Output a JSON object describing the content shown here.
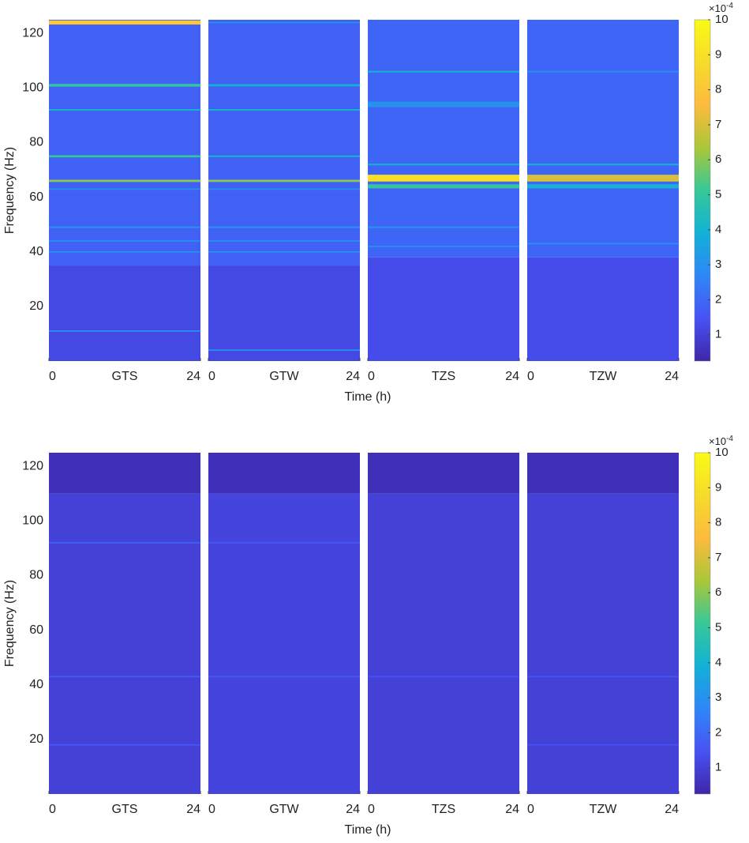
{
  "chart_data": [
    {
      "type": "heatmap",
      "ylabel": "Frequency (Hz)",
      "xlabel": "Time (h)",
      "ylim": [
        0,
        125
      ],
      "yticks": [
        20,
        40,
        60,
        80,
        100,
        120
      ],
      "xlim": [
        0,
        24
      ],
      "xticks": [
        0,
        24
      ],
      "clim": [
        0.25,
        10
      ],
      "cticks": [
        1,
        2,
        3,
        4,
        5,
        6,
        7,
        8,
        9,
        10
      ],
      "colorbar_scale": {
        "base": "×10",
        "exponent": "-4"
      },
      "colormap": "parula",
      "panels": [
        {
          "name": "GTS",
          "regions": [
            {
              "from": 0,
              "to": 35,
              "level": 1.2
            },
            {
              "from": 35,
              "to": 125,
              "level": 1.8
            }
          ],
          "bands": [
            {
              "freq": 124,
              "level": 8,
              "width": 1.5
            },
            {
              "freq": 101,
              "level": 5,
              "width": 1
            },
            {
              "freq": 92,
              "level": 4,
              "width": 0.6
            },
            {
              "freq": 75,
              "level": 5,
              "width": 0.8
            },
            {
              "freq": 66,
              "level": 6,
              "width": 0.8
            },
            {
              "freq": 63,
              "level": 3,
              "width": 0.5
            },
            {
              "freq": 49,
              "level": 3,
              "width": 0.6
            },
            {
              "freq": 44,
              "level": 3,
              "width": 0.5
            },
            {
              "freq": 40,
              "level": 3,
              "width": 0.5
            },
            {
              "freq": 11,
              "level": 3,
              "width": 0.5
            }
          ]
        },
        {
          "name": "GTW",
          "regions": [
            {
              "from": 0,
              "to": 35,
              "level": 1.2
            },
            {
              "from": 35,
              "to": 125,
              "level": 1.8
            }
          ],
          "bands": [
            {
              "freq": 124,
              "level": 3,
              "width": 0.5
            },
            {
              "freq": 101,
              "level": 4,
              "width": 0.8
            },
            {
              "freq": 92,
              "level": 4,
              "width": 0.6
            },
            {
              "freq": 75,
              "level": 4,
              "width": 0.6
            },
            {
              "freq": 66,
              "level": 6,
              "width": 0.8
            },
            {
              "freq": 63,
              "level": 3,
              "width": 0.5
            },
            {
              "freq": 49,
              "level": 3,
              "width": 0.6
            },
            {
              "freq": 44,
              "level": 3,
              "width": 0.5
            },
            {
              "freq": 40,
              "level": 3,
              "width": 0.5
            },
            {
              "freq": 4,
              "level": 3,
              "width": 0.5
            }
          ]
        },
        {
          "name": "TZS",
          "regions": [
            {
              "from": 0,
              "to": 38,
              "level": 1.3
            },
            {
              "from": 38,
              "to": 125,
              "level": 1.9
            }
          ],
          "bands": [
            {
              "freq": 106,
              "level": 4,
              "width": 0.6
            },
            {
              "freq": 94,
              "level": 3,
              "width": 2
            },
            {
              "freq": 72,
              "level": 4,
              "width": 0.6
            },
            {
              "freq": 67,
              "level": 9,
              "width": 2.5
            },
            {
              "freq": 64,
              "level": 5,
              "width": 1.5
            },
            {
              "freq": 49,
              "level": 3,
              "width": 0.6
            },
            {
              "freq": 42,
              "level": 3,
              "width": 0.5
            }
          ]
        },
        {
          "name": "TZW",
          "regions": [
            {
              "from": 0,
              "to": 38,
              "level": 1.3
            },
            {
              "from": 38,
              "to": 125,
              "level": 1.9
            }
          ],
          "bands": [
            {
              "freq": 106,
              "level": 3,
              "width": 0.5
            },
            {
              "freq": 72,
              "level": 4,
              "width": 0.6
            },
            {
              "freq": 67,
              "level": 7,
              "width": 2.5
            },
            {
              "freq": 64,
              "level": 4,
              "width": 1.5
            },
            {
              "freq": 43,
              "level": 3,
              "width": 0.5
            }
          ]
        }
      ]
    },
    {
      "type": "heatmap",
      "ylabel": "Frequency (Hz)",
      "xlabel": "Time (h)",
      "ylim": [
        0,
        125
      ],
      "yticks": [
        20,
        40,
        60,
        80,
        100,
        120
      ],
      "xlim": [
        0,
        24
      ],
      "xticks": [
        0,
        24
      ],
      "clim": [
        0.25,
        10
      ],
      "cticks": [
        1,
        2,
        3,
        4,
        5,
        6,
        7,
        8,
        9,
        10
      ],
      "colorbar_scale": {
        "base": "×10",
        "exponent": "-4"
      },
      "colormap": "parula",
      "panels": [
        {
          "name": "GTS",
          "regions": [
            {
              "from": 0,
              "to": 110,
              "level": 1.0
            },
            {
              "from": 110,
              "to": 125,
              "level": 0.5
            }
          ],
          "bands": [
            {
              "freq": 92,
              "level": 1.8,
              "width": 0.5
            },
            {
              "freq": 43,
              "level": 1.7,
              "width": 0.5
            },
            {
              "freq": 18,
              "level": 1.6,
              "width": 0.5
            }
          ]
        },
        {
          "name": "GTW",
          "regions": [
            {
              "from": 0,
              "to": 110,
              "level": 1.1
            },
            {
              "from": 110,
              "to": 125,
              "level": 0.5
            }
          ],
          "bands": [
            {
              "freq": 92,
              "level": 1.6,
              "width": 0.5
            },
            {
              "freq": 43,
              "level": 1.5,
              "width": 0.5
            }
          ]
        },
        {
          "name": "TZS",
          "regions": [
            {
              "from": 0,
              "to": 110,
              "level": 1.0
            },
            {
              "from": 110,
              "to": 125,
              "level": 0.5
            }
          ],
          "bands": [
            {
              "freq": 43,
              "level": 1.4,
              "width": 0.5
            }
          ]
        },
        {
          "name": "TZW",
          "regions": [
            {
              "from": 0,
              "to": 110,
              "level": 1.0
            },
            {
              "from": 110,
              "to": 125,
              "level": 0.5
            }
          ],
          "bands": [
            {
              "freq": 43,
              "level": 1.5,
              "width": 0.5
            },
            {
              "freq": 18,
              "level": 1.4,
              "width": 0.5
            }
          ]
        }
      ]
    }
  ]
}
